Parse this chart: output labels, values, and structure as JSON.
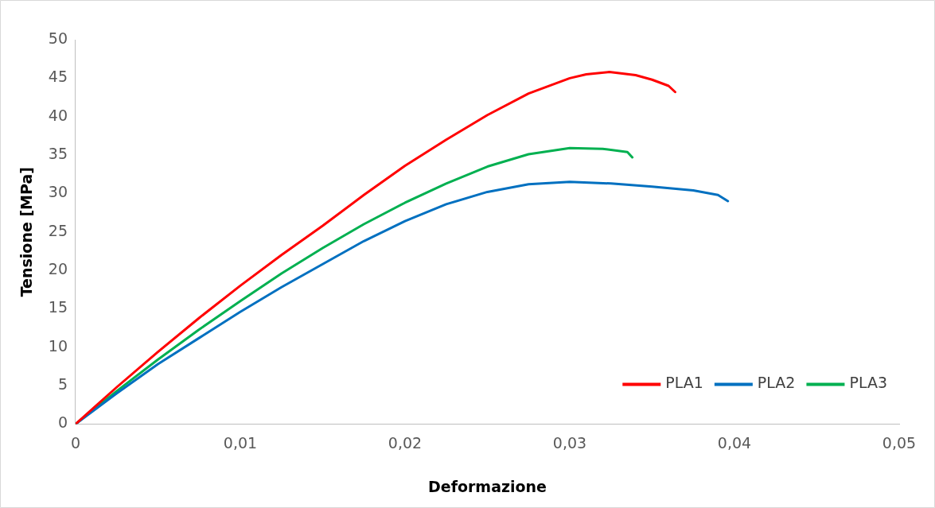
{
  "chart_data": {
    "type": "line",
    "xlabel": "Deformazione",
    "ylabel": "Tensione [MPa]",
    "xlim": [
      0,
      0.05
    ],
    "ylim": [
      0,
      50
    ],
    "xticks": [
      0,
      {
        "value": 0.01,
        "label": "0,01"
      },
      {
        "value": 0.02,
        "label": "0,02"
      },
      {
        "value": 0.03,
        "label": "0,03"
      },
      {
        "value": 0.04,
        "label": "0,04"
      },
      {
        "value": 0.05,
        "label": "0,05"
      }
    ],
    "yticks": [
      0,
      5,
      10,
      15,
      20,
      25,
      30,
      35,
      40,
      45,
      50
    ],
    "grid": false,
    "legend": "bottom right",
    "marker": "none",
    "line_style": "solid",
    "series": [
      {
        "name": "PLA1",
        "color": "#ff0000",
        "x": [
          0,
          0.0025,
          0.005,
          0.0075,
          0.01,
          0.0125,
          0.015,
          0.0175,
          0.02,
          0.0225,
          0.025,
          0.0275,
          0.03,
          0.031,
          0.0324,
          0.034,
          0.035,
          0.036,
          0.0364
        ],
        "values": [
          0,
          4.8,
          9.4,
          13.8,
          18,
          22,
          25.8,
          29.8,
          33.6,
          37,
          40.2,
          43,
          45,
          45.5,
          45.8,
          45.4,
          44.8,
          44,
          43.2
        ]
      },
      {
        "name": "PLA2",
        "color": "#0070c0",
        "x": [
          0,
          0.0025,
          0.005,
          0.0075,
          0.01,
          0.0125,
          0.015,
          0.0175,
          0.02,
          0.0225,
          0.025,
          0.0275,
          0.03,
          0.0325,
          0.035,
          0.0375,
          0.039,
          0.0396
        ],
        "values": [
          0,
          4,
          7.8,
          11.2,
          14.6,
          17.8,
          20.8,
          23.8,
          26.4,
          28.6,
          30.2,
          31.2,
          31.5,
          31.3,
          30.9,
          30.4,
          29.8,
          29
        ]
      },
      {
        "name": "PLA3",
        "color": "#00b050",
        "x": [
          0,
          0.0025,
          0.005,
          0.0075,
          0.01,
          0.0125,
          0.015,
          0.0175,
          0.02,
          0.0225,
          0.025,
          0.0275,
          0.03,
          0.032,
          0.0335,
          0.0338
        ],
        "values": [
          0,
          4.3,
          8.4,
          12.3,
          16,
          19.6,
          22.9,
          26,
          28.8,
          31.3,
          33.5,
          35.1,
          35.9,
          35.8,
          35.4,
          34.7
        ]
      }
    ]
  }
}
